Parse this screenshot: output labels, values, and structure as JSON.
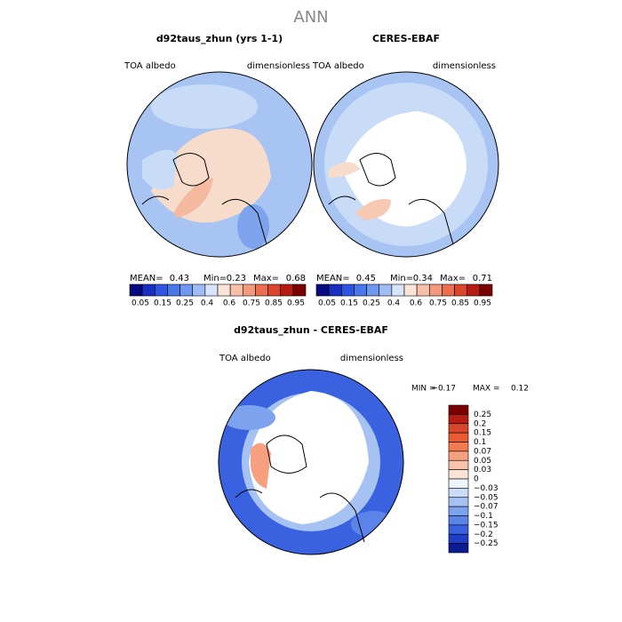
{
  "title": "ANN",
  "panels": [
    {
      "title": "d92taus_zhun (yrs 1-1)",
      "left_label": "TOA albedo",
      "right_label": "dimensionless",
      "stats": [
        {
          "label": "MEAN=",
          "value": 0.43
        },
        {
          "label": "Min=",
          "value": 0.23
        },
        {
          "label": "Max=",
          "value": 0.68
        }
      ],
      "colorbar": [
        "0.05",
        "0.15",
        "0.25",
        "0.4",
        "0.6",
        "0.75",
        "0.85",
        "0.95"
      ]
    },
    {
      "title": "CERES-EBAF",
      "left_label": "TOA albedo",
      "right_label": "dimensionless",
      "stats": [
        {
          "label": "MEAN=",
          "value": 0.45
        },
        {
          "label": "Min=",
          "value": 0.34
        },
        {
          "label": "Max=",
          "value": 0.71
        }
      ],
      "colorbar": [
        "0.05",
        "0.15",
        "0.25",
        "0.4",
        "0.6",
        "0.75",
        "0.85",
        "0.95"
      ]
    }
  ],
  "difference": {
    "title": "d92taus_zhun - CERES-EBAF",
    "left_label": "TOA albedo",
    "right_label": "dimensionless",
    "stats": [
      {
        "label": "MIN =",
        "value": "−0.17"
      },
      {
        "label": "MAX =",
        "value": 0.12
      }
    ],
    "colorbar": [
      "0.25",
      "0.2",
      "0.15",
      "0.1",
      "0.07",
      "0.05",
      "0.03",
      "0",
      "−0.03",
      "−0.05",
      "−0.07",
      "−0.1",
      "−0.15",
      "−0.2",
      "−0.25"
    ]
  }
}
